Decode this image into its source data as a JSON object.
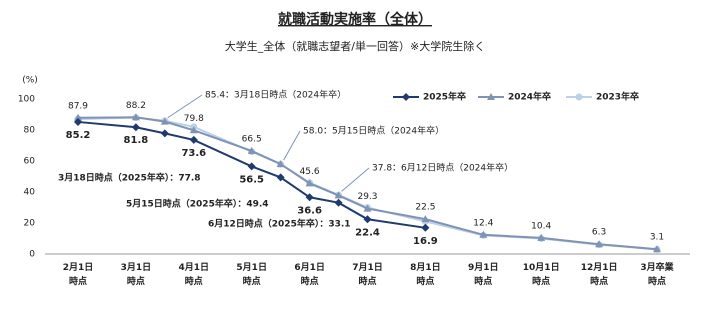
{
  "chart_data": {
    "type": "line",
    "title": "就職活動実施率（全体）",
    "subtitle": "大学生_全体（就職志望者/単一回答）※大学院生除く",
    "y_unit": "(%)",
    "categories": [
      "2月1日\n時点",
      "3月1日\n時点",
      null,
      "4月1日\n時点",
      "5月1日\n時点",
      null,
      "6月1日\n時点",
      null,
      "7月1日\n時点",
      "8月1日\n時点",
      "9月1日\n時点",
      "10月1日\n時点",
      "12月1日\n時点",
      "3月卒業\n時点"
    ],
    "series": [
      {
        "name": "2025年卒",
        "color": "#1f3a6e",
        "marker": "diamond",
        "values": [
          85.2,
          81.8,
          77.8,
          73.6,
          56.5,
          49.4,
          36.6,
          33.1,
          22.4,
          16.9,
          null,
          null,
          null,
          null
        ],
        "value_labels": [
          "85.2",
          "81.8",
          "3月18日時点（2025年卒）：77.8",
          "73.6",
          "56.5",
          "5月15日時点（2025年卒）：49.4",
          "36.6",
          "6月12日時点（2025年卒）：33.1",
          "22.4",
          "16.9",
          null,
          null,
          null,
          null
        ]
      },
      {
        "name": "2024年卒",
        "color": "#7f93b5",
        "marker": "triangle",
        "values": [
          87.9,
          88.2,
          85.4,
          79.8,
          66.5,
          58.0,
          45.6,
          37.8,
          29.3,
          22.5,
          12.4,
          10.4,
          6.3,
          3.1
        ],
        "value_labels": [
          "87.9",
          "88.2",
          "85.4：3月18日時点（2024年卒）",
          "79.8",
          "66.5",
          "58.0：5月15日時点（2024年卒）",
          "45.6",
          "37.8：6月12日時点（2024年卒）",
          "29.3",
          "22.5",
          "12.4",
          "10.4",
          "6.3",
          "3.1"
        ]
      },
      {
        "name": "2023年卒",
        "color": "#bcd0e8",
        "marker": "circle",
        "values": [
          87.0,
          88.0,
          86.0,
          82.0,
          66.0,
          58.0,
          46.0,
          38.0,
          30.0,
          21.0,
          12.0,
          10.0,
          6.0,
          3.0
        ]
      }
    ],
    "ylim": [
      0,
      100
    ],
    "yticks": [
      0,
      20,
      40,
      60,
      80,
      100
    ],
    "grid": false
  }
}
